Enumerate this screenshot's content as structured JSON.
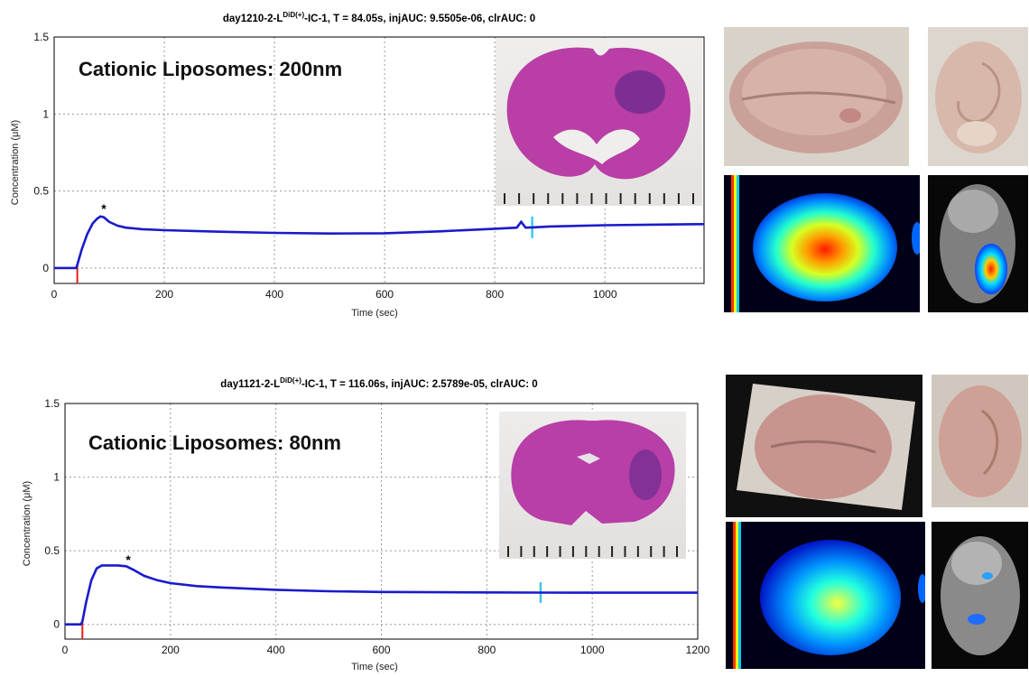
{
  "chart_data": [
    {
      "type": "line",
      "title_prefix": "day1210-2-L",
      "title_sup": "DiD(+)",
      "title_suffix": "-IC-1, T = 84.05s, injAUC: 9.5505e-06, clrAUC: 0",
      "xlabel": "Time (sec)",
      "ylabel": "Concentration (μM)",
      "xlim": [
        0,
        1180
      ],
      "ylim": [
        -0.1,
        1.5
      ],
      "x_ticks": [
        0,
        200,
        400,
        600,
        800,
        1000
      ],
      "y_ticks": [
        0,
        0.5,
        1,
        1.5
      ],
      "y_tick_labels": [
        "0",
        "0.5",
        "1",
        "1.5"
      ],
      "grid": true,
      "annotation": "Cationic Liposomes: 200nm",
      "peak_marker": {
        "x": 90,
        "y": 0.37,
        "label": "*"
      },
      "injection_marker_x": 42,
      "clearance_marker_x": 868,
      "series": [
        {
          "color": "#1a1acc",
          "points": [
            [
              0,
              0
            ],
            [
              40,
              0
            ],
            [
              42,
              0.02
            ],
            [
              50,
              0.12
            ],
            [
              60,
              0.22
            ],
            [
              70,
              0.29
            ],
            [
              78,
              0.32
            ],
            [
              84,
              0.335
            ],
            [
              90,
              0.33
            ],
            [
              100,
              0.3
            ],
            [
              115,
              0.275
            ],
            [
              130,
              0.262
            ],
            [
              160,
              0.252
            ],
            [
              200,
              0.246
            ],
            [
              300,
              0.236
            ],
            [
              400,
              0.228
            ],
            [
              500,
              0.224
            ],
            [
              600,
              0.226
            ],
            [
              700,
              0.238
            ],
            [
              800,
              0.255
            ],
            [
              840,
              0.262
            ],
            [
              848,
              0.3
            ],
            [
              856,
              0.262
            ],
            [
              868,
              0.264
            ],
            [
              900,
              0.27
            ],
            [
              1000,
              0.278
            ],
            [
              1100,
              0.282
            ],
            [
              1180,
              0.285
            ]
          ]
        }
      ]
    },
    {
      "type": "line",
      "title_prefix": "day1121-2-L",
      "title_sup": "DiD(+)",
      "title_suffix": "-IC-1, T = 116.06s, injAUC: 2.5789e-05, clrAUC: 0",
      "xlabel": "Time (sec)",
      "ylabel": "Concentration (μM)",
      "xlim": [
        0,
        1200
      ],
      "ylim": [
        -0.1,
        1.5
      ],
      "x_ticks": [
        0,
        200,
        400,
        600,
        800,
        1000,
        1200
      ],
      "y_ticks": [
        0,
        0.5,
        1,
        1.5
      ],
      "y_tick_labels": [
        "0",
        "0.5",
        "1",
        "1.5"
      ],
      "grid": true,
      "annotation": "Cationic Liposomes: 80nm",
      "peak_marker": {
        "x": 120,
        "y": 0.42,
        "label": "*"
      },
      "injection_marker_x": 33,
      "clearance_marker_x": 902,
      "series": [
        {
          "color": "#1a1acc",
          "points": [
            [
              0,
              0
            ],
            [
              30,
              0
            ],
            [
              33,
              0.02
            ],
            [
              40,
              0.15
            ],
            [
              50,
              0.3
            ],
            [
              60,
              0.38
            ],
            [
              70,
              0.4
            ],
            [
              100,
              0.4
            ],
            [
              116,
              0.395
            ],
            [
              130,
              0.37
            ],
            [
              150,
              0.33
            ],
            [
              175,
              0.3
            ],
            [
              200,
              0.28
            ],
            [
              250,
              0.26
            ],
            [
              300,
              0.25
            ],
            [
              400,
              0.235
            ],
            [
              500,
              0.225
            ],
            [
              600,
              0.22
            ],
            [
              700,
              0.218
            ],
            [
              800,
              0.217
            ],
            [
              900,
              0.216
            ],
            [
              1000,
              0.215
            ],
            [
              1100,
              0.215
            ],
            [
              1200,
              0.215
            ]
          ]
        }
      ]
    }
  ]
}
